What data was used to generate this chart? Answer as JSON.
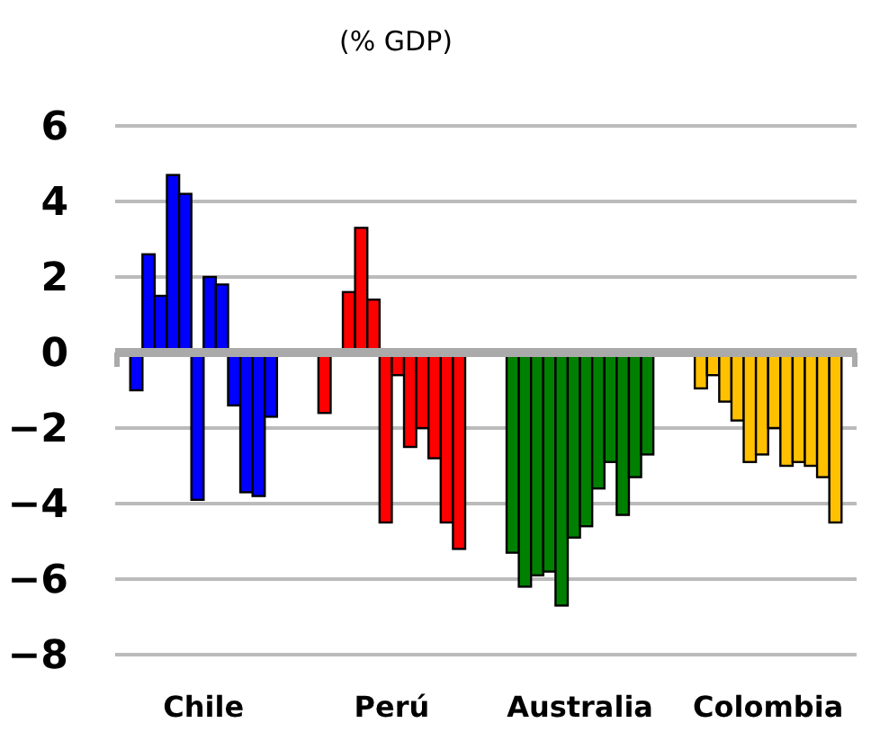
{
  "chart_data": {
    "type": "bar",
    "title": "(% GDP)",
    "categories": [
      "Chile",
      "Perú",
      "Australia",
      "Colombia"
    ],
    "series": [
      {
        "colors": [
          "#0000ff",
          "#ff0000",
          "#008000",
          "#ffc000"
        ],
        "values": [
          -1.0,
          -1.6,
          -5.3,
          -0.95
        ]
      },
      {
        "colors": [
          "#0000ff",
          "#ff0000",
          "#008000",
          "#ffc000"
        ],
        "values": [
          2.6,
          null,
          -6.2,
          -0.6
        ]
      },
      {
        "colors": [
          "#0000ff",
          "#ff0000",
          "#008000",
          "#ffc000"
        ],
        "values": [
          1.5,
          1.6,
          -5.9,
          -1.3
        ]
      },
      {
        "colors": [
          "#0000ff",
          "#ff0000",
          "#008000",
          "#ffc000"
        ],
        "values": [
          4.7,
          3.3,
          -5.8,
          -1.8
        ]
      },
      {
        "colors": [
          "#0000ff",
          "#ff0000",
          "#008000",
          "#ffc000"
        ],
        "values": [
          4.2,
          1.4,
          -6.7,
          -2.9
        ]
      },
      {
        "colors": [
          "#0000ff",
          "#ff0000",
          "#008000",
          "#ffc000"
        ],
        "values": [
          -3.9,
          -4.5,
          -4.9,
          -2.7
        ]
      },
      {
        "colors": [
          "#0000ff",
          "#ff0000",
          "#008000",
          "#ffc000"
        ],
        "values": [
          2.0,
          -0.6,
          -4.6,
          -2.0
        ]
      },
      {
        "colors": [
          "#0000ff",
          "#ff0000",
          "#008000",
          "#ffc000"
        ],
        "values": [
          1.8,
          -2.5,
          -3.6,
          -3.0
        ]
      },
      {
        "colors": [
          "#0000ff",
          "#ff0000",
          "#008000",
          "#ffc000"
        ],
        "values": [
          -1.4,
          -2.0,
          -2.9,
          -2.9
        ]
      },
      {
        "colors": [
          "#0000ff",
          "#ff0000",
          "#008000",
          "#ffc000"
        ],
        "values": [
          -3.7,
          -2.8,
          -4.3,
          -3.0
        ]
      },
      {
        "colors": [
          "#0000ff",
          "#ff0000",
          "#008000",
          "#ffc000"
        ],
        "values": [
          -3.8,
          -4.5,
          -3.3,
          -3.3
        ]
      },
      {
        "colors": [
          "#0000ff",
          "#ff0000",
          "#008000",
          "#ffc000"
        ],
        "values": [
          -1.7,
          -5.2,
          -2.7,
          -4.5
        ]
      }
    ],
    "ylim": [
      -8,
      6
    ],
    "yticks": [
      {
        "value": -8,
        "label": "−8"
      },
      {
        "value": -6,
        "label": "−6"
      },
      {
        "value": -4,
        "label": "−4"
      },
      {
        "value": -2,
        "label": "−2"
      },
      0,
      2,
      4,
      6
    ],
    "grid": "y"
  }
}
